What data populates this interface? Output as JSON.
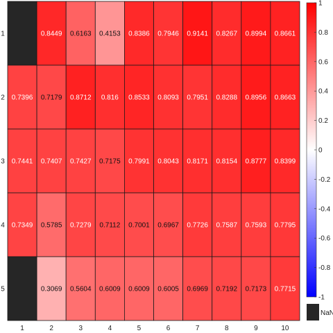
{
  "chart_data": {
    "type": "heatmap",
    "title": "",
    "xlabel": "",
    "ylabel": "",
    "x_labels": [
      "1",
      "2",
      "3",
      "4",
      "5",
      "6",
      "7",
      "8",
      "9",
      "10"
    ],
    "y_labels": [
      "1",
      "2",
      "3",
      "4",
      "5"
    ],
    "values": [
      [
        null,
        0.8449,
        0.6163,
        0.4153,
        0.8386,
        0.7946,
        0.9141,
        0.8267,
        0.8994,
        0.8661
      ],
      [
        0.7396,
        0.7179,
        0.8712,
        0.816,
        0.8533,
        0.8093,
        0.7951,
        0.8288,
        0.8956,
        0.8663
      ],
      [
        0.7441,
        0.7407,
        0.7427,
        0.7175,
        0.7991,
        0.8043,
        0.8171,
        0.8154,
        0.8777,
        0.8399
      ],
      [
        0.7349,
        0.5785,
        0.7279,
        0.7112,
        0.7001,
        0.6967,
        0.7726,
        0.7587,
        0.7593,
        0.7795
      ],
      [
        null,
        0.3069,
        0.5604,
        0.6009,
        0.6009,
        0.6005,
        0.6969,
        0.7192,
        0.7173,
        0.7715
      ]
    ],
    "colorbar": {
      "range": [
        -1,
        1
      ],
      "ticks": [
        "1",
        "0.8",
        "0.6",
        "0.4",
        "0.2",
        "0",
        "-0.2",
        "-0.4",
        "-0.6",
        "-0.8",
        "-1"
      ],
      "low_color": "#0000ff",
      "mid_color": "#ffffff",
      "high_color": "#ff0000",
      "nan_color": "#262626",
      "nan_label": "NaN"
    },
    "grid": true,
    "legend": "right"
  }
}
